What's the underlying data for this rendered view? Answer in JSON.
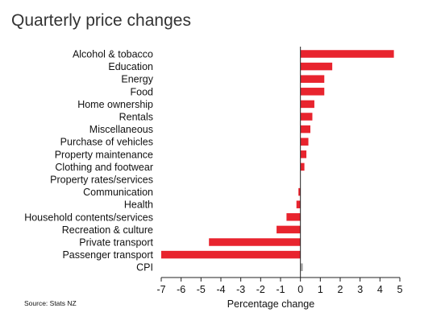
{
  "title": "Quarterly price changes",
  "source": "Source: Stats NZ",
  "colors": {
    "bar": "#e8242e",
    "cpi_bar": "#a6a6a6",
    "axis": "#222222",
    "text": "#111111"
  },
  "chart_data": {
    "type": "bar",
    "orientation": "horizontal",
    "title": "Quarterly price changes",
    "xlabel": "Percentage change",
    "ylabel": "",
    "xlim": [
      -7,
      5
    ],
    "xticks": [
      -7,
      -6,
      -5,
      -4,
      -3,
      -2,
      -1,
      0,
      1,
      2,
      3,
      4,
      5
    ],
    "grid": false,
    "categories": [
      "Alcohol & tobacco",
      "Education",
      "Energy",
      "Food",
      "Home ownership",
      "Rentals",
      "Miscellaneous",
      "Purchase of vehicles",
      "Property maintenance",
      "Clothing and footwear",
      "Property rates/services",
      "Communication",
      "Health",
      "Household contents/services",
      "Recreation & culture",
      "Private transport",
      "Passenger transport",
      "CPI"
    ],
    "values": [
      4.7,
      1.6,
      1.2,
      1.2,
      0.7,
      0.6,
      0.5,
      0.4,
      0.3,
      0.2,
      0.0,
      -0.1,
      -0.2,
      -0.7,
      -1.2,
      -4.6,
      -7.0,
      0.1
    ]
  }
}
